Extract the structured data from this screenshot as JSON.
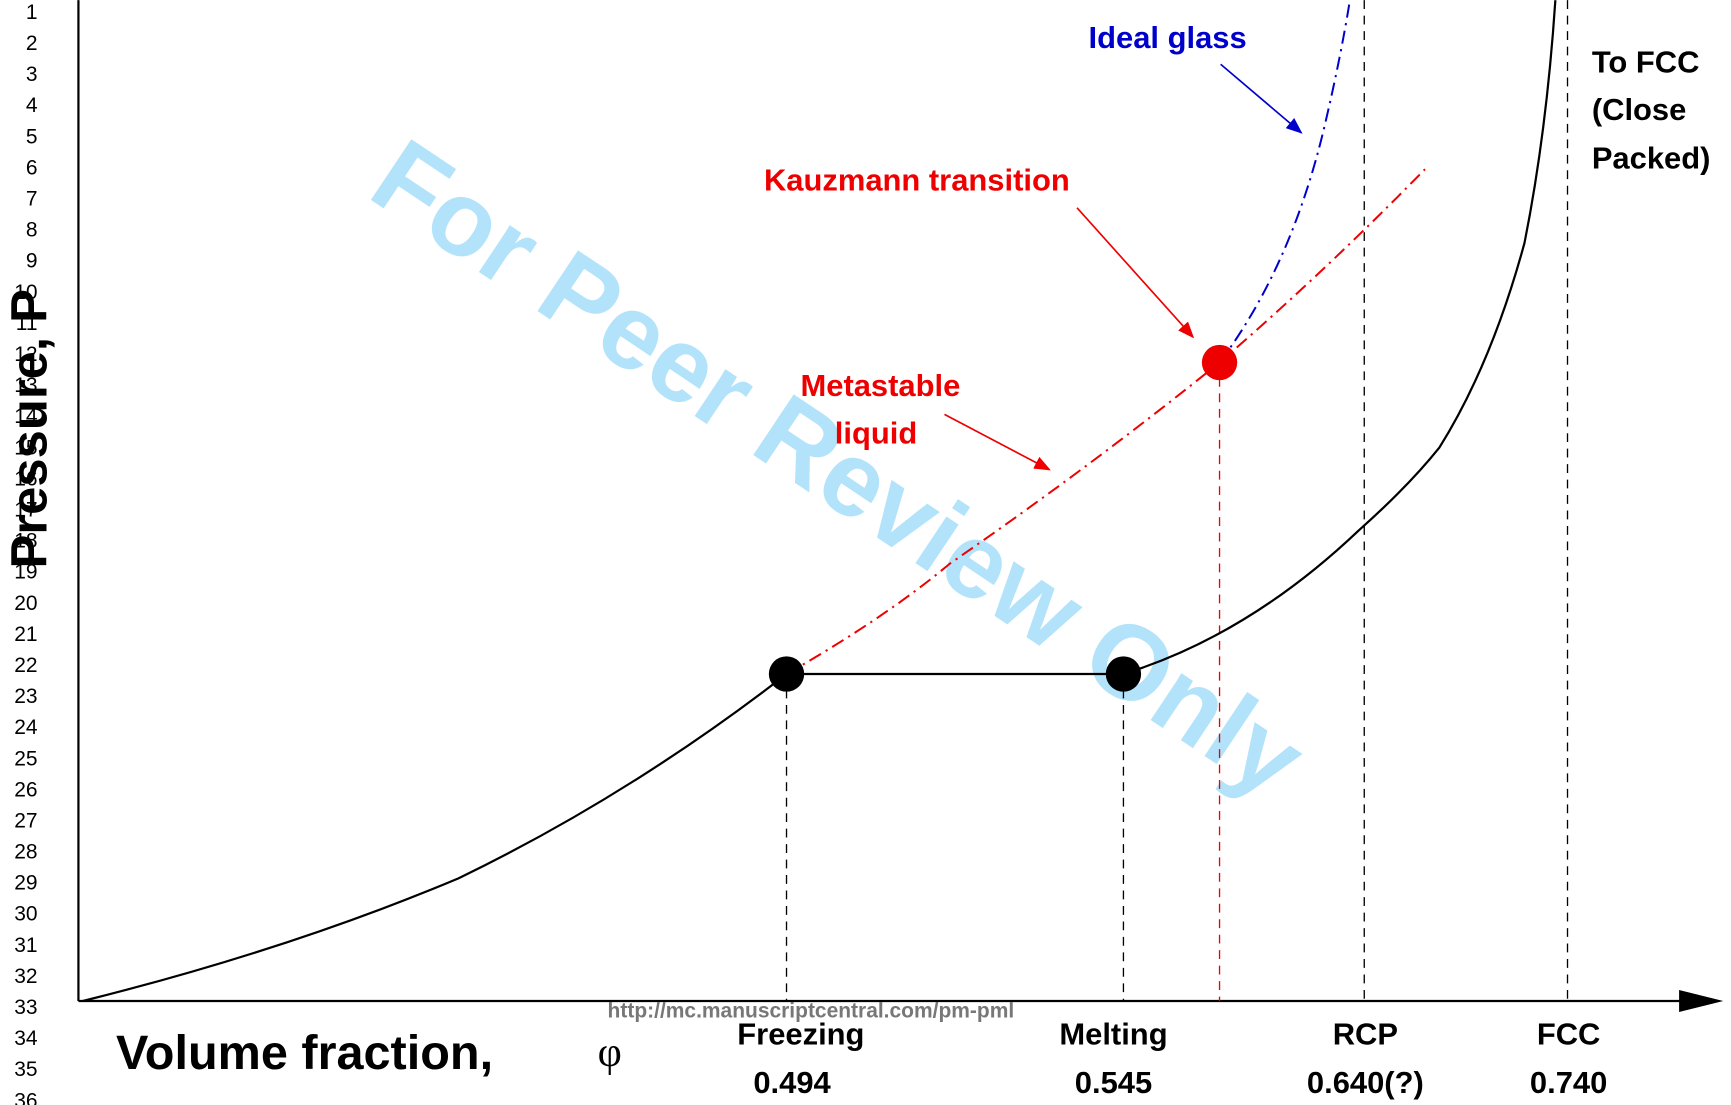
{
  "line_numbers": [
    1,
    2,
    3,
    4,
    5,
    6,
    7,
    8,
    9,
    10,
    11,
    12,
    13,
    14,
    15,
    16,
    17,
    18,
    19,
    20,
    21,
    22,
    23,
    24,
    25,
    26,
    27,
    28,
    29,
    30,
    31,
    32,
    33,
    34,
    35,
    36
  ],
  "watermark": "For Peer Review Only",
  "url": "http://mc.manuscriptcentral.com/pm-pml",
  "figure": {
    "y_axis_label": "Pressure, P",
    "x_axis_label": "Volume fraction,",
    "x_axis_symbol": "φ",
    "annotations": {
      "ideal_glass": "Ideal glass",
      "kauzmann": "Kauzmann transition",
      "metastable": [
        "Metastable",
        "liquid"
      ],
      "to_fcc": [
        "To FCC",
        "(Close",
        "Packed)"
      ]
    },
    "markers": [
      {
        "name": "Freezing",
        "value": "0.494"
      },
      {
        "name": "Melting",
        "value": "0.545"
      },
      {
        "name": "RCP",
        "value": "0.640(?)"
      },
      {
        "name": "FCC",
        "value": "0.740"
      }
    ]
  }
}
